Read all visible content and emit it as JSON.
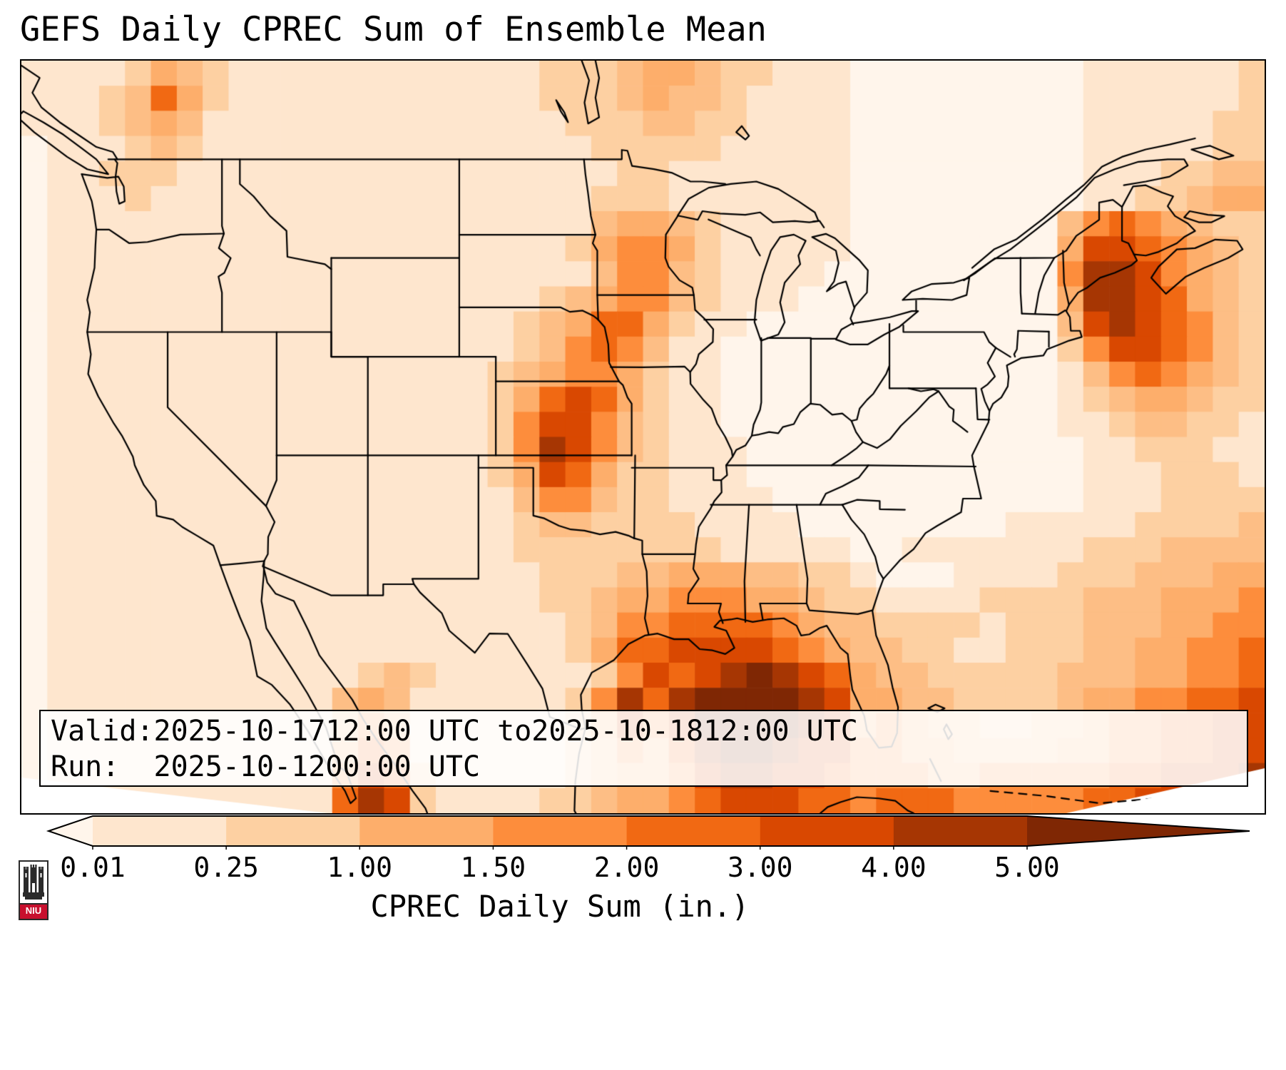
{
  "title": "GEFS Daily CPREC Sum of Ensemble Mean",
  "info_box": {
    "line1": "Valid: 2025-10-17 12:00 UTC to 2025-10-18 12:00 UTC",
    "line2": "Run:   2025-10-12 00:00 UTC"
  },
  "colorbar": {
    "label": "CPREC Daily Sum (in.)",
    "ticks": [
      "0.01",
      "0.25",
      "1.00",
      "1.50",
      "2.00",
      "3.00",
      "4.00",
      "5.00"
    ],
    "segment_colors": [
      "#fee6ce",
      "#fdd0a2",
      "#fdae6b",
      "#fd8d3c",
      "#f16913",
      "#d94801",
      "#a63603"
    ],
    "under_color": "#fff5eb",
    "over_color": "#7f2704"
  },
  "logo": {
    "text": "NIU",
    "accent_color": "#c8102e"
  },
  "chart_data": {
    "type": "heatmap",
    "title": "GEFS Daily CPREC Sum of Ensemble Mean",
    "colorbar_label": "CPREC Daily Sum (in.)",
    "units": "inches",
    "valid": "2025-10-17 12:00 UTC to 2025-10-18 12:00 UTC",
    "run": "2025-10-12 00:00 UTC",
    "levels_in": [
      0.01,
      0.25,
      1.0,
      1.5,
      2.0,
      3.0,
      4.0,
      5.0
    ],
    "legend_position": "bottom",
    "extent": {
      "lon_min": -128,
      "lon_max": -60,
      "lat_min": 22.5,
      "lat_max": 53
    },
    "grid_cols": 48,
    "grid_rows": 30,
    "value_key_inches": {
      "0": 0.0,
      "1": 0.05,
      "2": 0.15,
      "3": 0.5,
      "4": 0.9,
      "5": 1.2,
      "6": 1.7,
      "7": 2.4,
      "8": 3.2,
      "9": 4.3,
      "A": 5.5
    },
    "palette": {
      "0": "#ffffff",
      "1": "#fff5eb",
      "2": "#fee6ce",
      "3": "#fdd0a2",
      "4": "#fdbe85",
      "5": "#fdae6b",
      "6": "#fd8d3c",
      "7": "#f16913",
      "8": "#d94801",
      "9": "#a63603",
      "A": "#7f2704"
    },
    "grid": [
      "222235432222222222223334554332221111111112222223",
      "222347532222222222223334544322221111111112222223",
      "222345422222222222222333443322221111111112222233",
      "122234322222222222222233333222221111111112222233",
      "122333222222222222222223322222221111111112223344",
      "122232222222222222222233322222221111111112233455",
      "122222222222222222222245543222221111111146765433",
      "122222222222222222222356653222221111111158876543",
      "122222222222222222222246643222211111111169986543",
      "122222222222222222223456643222111111111159987543",
      "122222222222222222234577532211111111111148987643",
      "122222222222222222234676422111111111111136887643",
      "122222222222222222345665322111111111111124676543",
      "122222222222222222357875322111111111111123455433",
      "122222222222222222368864322111111111111122344332",
      "122222222222222222369864322211111111111112233322",
      "122222222222222222358753322211111111111112223332",
      "122222222222222222246643322221111111111112223333",
      "122222222222222222234433332222111111112222233334",
      "122222222222222222233333333222221122222223334444",
      "122222222222222222223334455544332111222233344455",
      "122222222222222222223345566655433222233334445556",
      "122222222222222222222346677776544333323334445566",
      "122222222222222222222357788887654433223334455667",
      "122222222222234322222236878 9A98754433333444556677",
      "1222222222224542222223697 9AAAA985544333345566778",
      "1222222222224652222223586 8AAAA985654433445667788",
      "12222222222257622222234657 9AA98866554444556677888",
      "122222222222687322222345568 99887666556 6666778889",
      "12222222222279832222334556788877677766 6667788999"
    ],
    "grid_note": "rows north-to-south (lat 53 to 22.5), cols west-to-east (lon -128 to -60); chars map to inches via value_key_inches",
    "maxima": [
      {
        "region": "Gulf of Mexico south of Louisiana/Mississippi",
        "value_in": ">5.0"
      },
      {
        "region": "Atlantic east of New England",
        "value_in": ">4.0"
      },
      {
        "region": "Central Kansas/Oklahoma band",
        "value_in": "3.0-4.5"
      },
      {
        "region": "Iowa/Minnesota band",
        "value_in": "1.5-2.5"
      },
      {
        "region": "British Columbia coast range",
        "value_in": "2.0-2.5"
      },
      {
        "region": "Western Mexico (Sierra Madre)",
        "value_in": "3.0-4.5"
      },
      {
        "region": "Near Cuba / far southeast corner",
        "value_in": "3.0-5.0"
      }
    ]
  }
}
